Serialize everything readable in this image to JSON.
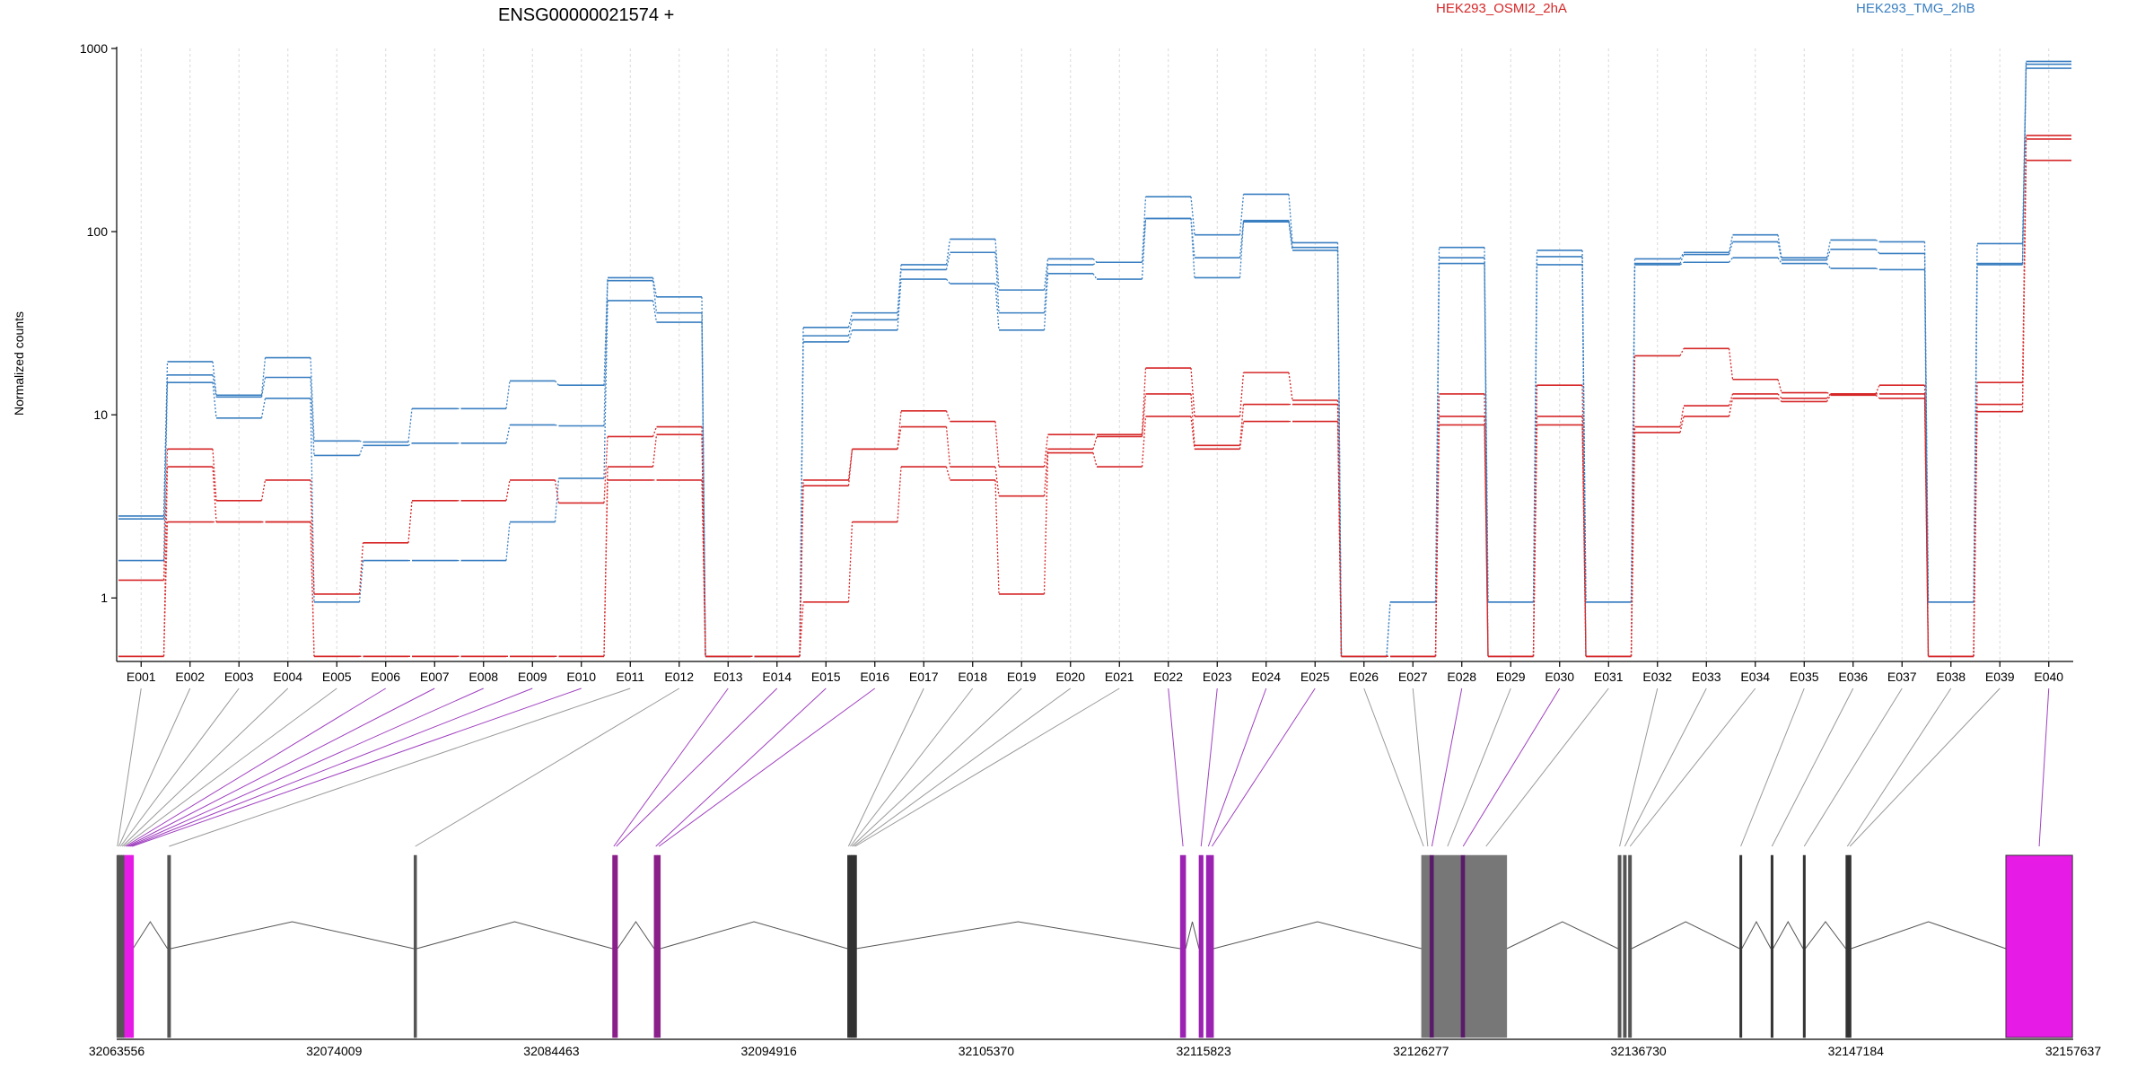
{
  "chart_data": {
    "type": "line",
    "title": "ENSG00000021574 +",
    "ylabel": "Normalized counts",
    "y_scale": "log",
    "ylim": [
      0.45,
      1000
    ],
    "yticks": [
      1,
      10,
      100,
      1000
    ],
    "ytick_labels": [
      "1",
      "10",
      "100",
      "1000"
    ],
    "exons": [
      "E001",
      "E002",
      "E003",
      "E004",
      "E005",
      "E006",
      "E007",
      "E008",
      "E009",
      "E010",
      "E011",
      "E012",
      "E013",
      "E014",
      "E015",
      "E016",
      "E017",
      "E018",
      "E019",
      "E020",
      "E021",
      "E022",
      "E023",
      "E024",
      "E025",
      "E026",
      "E027",
      "E028",
      "E029",
      "E030",
      "E031",
      "E032",
      "E033",
      "E034",
      "E035",
      "E036",
      "E037",
      "E038",
      "E039",
      "E040"
    ],
    "legend": [
      {
        "name": "HEK293_OSMI2_2hA",
        "color": "#d62728"
      },
      {
        "name": "HEK293_TMG_2hB",
        "color": "#3a7fc1"
      }
    ],
    "series": [
      {
        "group": "HEK293_TMG_2hB",
        "color": "#3a7fc1",
        "values": [
          2.8,
          19.5,
          12.8,
          20.5,
          7.2,
          7.1,
          10.8,
          10.8,
          15.3,
          14.5,
          56,
          44,
          0.48,
          0.48,
          30,
          36,
          66,
          91,
          48,
          71,
          68,
          155,
          96,
          160,
          87,
          0.48,
          0.95,
          82,
          0.95,
          79,
          0.95,
          71,
          77,
          96,
          72,
          90,
          88,
          0.95,
          86,
          850
        ]
      },
      {
        "group": "HEK293_TMG_2hB",
        "color": "#3a7fc1",
        "values": [
          2.7,
          16.5,
          12.5,
          16,
          6,
          6.8,
          7,
          7,
          8.8,
          8.7,
          54,
          36,
          0.48,
          0.48,
          27,
          33,
          62,
          77,
          36,
          66,
          68,
          118,
          72,
          115,
          82,
          0.48,
          0.95,
          72,
          0.95,
          73,
          0.95,
          67,
          75,
          88,
          70,
          80,
          76,
          0.95,
          67,
          820
        ]
      },
      {
        "group": "HEK293_TMG_2hB",
        "color": "#3a7fc1",
        "values": [
          1.6,
          15,
          9.6,
          12.3,
          0.95,
          1.6,
          1.6,
          1.6,
          2.6,
          4.5,
          42,
          32,
          0.48,
          0.48,
          25,
          29,
          55,
          52,
          29,
          59,
          55,
          118,
          56,
          113,
          79,
          0.48,
          0.48,
          67,
          0.48,
          66,
          0.48,
          66,
          68,
          72,
          67,
          63,
          62,
          0.48,
          66,
          780
        ]
      },
      {
        "group": "HEK293_OSMI2_2hA",
        "color": "#d62728",
        "values": [
          1.25,
          6.5,
          3.4,
          4.4,
          1.05,
          2,
          3.4,
          3.4,
          4.4,
          3.3,
          7.6,
          8.6,
          0.48,
          0.48,
          4.4,
          6.5,
          10.5,
          9.2,
          5.2,
          7.8,
          7.8,
          18,
          9.8,
          17,
          12,
          0.48,
          0.48,
          13,
          0.48,
          14.5,
          0.48,
          21,
          23,
          15.6,
          13.2,
          13,
          14.5,
          0.48,
          15,
          335
        ]
      },
      {
        "group": "HEK293_OSMI2_2hA",
        "color": "#d62728",
        "values": [
          0.48,
          5.2,
          2.6,
          2.6,
          0.48,
          0.48,
          0.48,
          0.48,
          0.48,
          0.48,
          5.2,
          7.8,
          0.48,
          0.48,
          4.1,
          6.5,
          8.6,
          5.2,
          3.6,
          6.5,
          7.6,
          13,
          6.8,
          11.4,
          11.4,
          0.48,
          0.48,
          9.8,
          0.48,
          9.8,
          0.48,
          8.6,
          11.2,
          13,
          12.3,
          13,
          13,
          0.48,
          11.4,
          320
        ]
      },
      {
        "group": "HEK293_OSMI2_2hA",
        "color": "#d62728",
        "values": [
          0.48,
          2.6,
          2.6,
          2.6,
          0.48,
          0.48,
          0.48,
          0.48,
          0.48,
          0.48,
          4.4,
          4.4,
          0.48,
          0.48,
          0.95,
          2.6,
          5.2,
          4.4,
          1.05,
          6.2,
          5.2,
          9.8,
          6.5,
          9.2,
          9.2,
          0.48,
          0.48,
          8.8,
          0.48,
          8.8,
          0.48,
          8,
          9.8,
          12.3,
          11.8,
          12.8,
          12.3,
          0.48,
          10.4,
          245
        ]
      }
    ],
    "gene_model": {
      "coordinate_ticks": [
        "32063556",
        "32074009",
        "32084463",
        "32094916",
        "32105370",
        "32115823",
        "32126277",
        "32136730",
        "32147184",
        "32157637"
      ],
      "start": 32063556,
      "end": 32157637,
      "exon_color": "#e61be6",
      "highlight_link_color": "#a040c0",
      "exons": [
        {
          "id": "E001",
          "start": 32063560,
          "end": 32063620,
          "color": "#555555"
        },
        {
          "id": "E002",
          "start": 32063620,
          "end": 32063700,
          "color": "#555555"
        },
        {
          "id": "E003",
          "start": 32063700,
          "end": 32063780,
          "color": "#555555"
        },
        {
          "id": "E004",
          "start": 32063780,
          "end": 32063860,
          "color": "#555555"
        },
        {
          "id": "E005",
          "start": 32063860,
          "end": 32063940,
          "color": "#555555"
        },
        {
          "id": "E006",
          "start": 32063940,
          "end": 32064020,
          "color": "#e61be6"
        },
        {
          "id": "E007",
          "start": 32064020,
          "end": 32064100,
          "color": "#e61be6"
        },
        {
          "id": "E008",
          "start": 32064100,
          "end": 32064180,
          "color": "#e61be6"
        },
        {
          "id": "E009",
          "start": 32064180,
          "end": 32064260,
          "color": "#e61be6"
        },
        {
          "id": "E010",
          "start": 32064260,
          "end": 32064340,
          "color": "#e61be6"
        },
        {
          "id": "E011",
          "start": 32066000,
          "end": 32066150,
          "color": "#555555"
        },
        {
          "id": "E012",
          "start": 32077850,
          "end": 32077980,
          "color": "#555555"
        },
        {
          "id": "E013",
          "start": 32087400,
          "end": 32087520,
          "color": "#8a1f8a"
        },
        {
          "id": "E014",
          "start": 32087520,
          "end": 32087640,
          "color": "#8a1f8a"
        },
        {
          "id": "E015",
          "start": 32089400,
          "end": 32089560,
          "color": "#8a1f8a"
        },
        {
          "id": "E016",
          "start": 32089560,
          "end": 32089700,
          "color": "#8a1f8a"
        },
        {
          "id": "E017",
          "start": 32098700,
          "end": 32098790,
          "color": "#333333"
        },
        {
          "id": "E018",
          "start": 32098790,
          "end": 32098870,
          "color": "#333333"
        },
        {
          "id": "E019",
          "start": 32098870,
          "end": 32098950,
          "color": "#333333"
        },
        {
          "id": "E020",
          "start": 32098950,
          "end": 32099030,
          "color": "#333333"
        },
        {
          "id": "E021",
          "start": 32099030,
          "end": 32099110,
          "color": "#333333"
        },
        {
          "id": "E022",
          "start": 32114700,
          "end": 32114960,
          "color": "#9b22b2"
        },
        {
          "id": "E023",
          "start": 32115600,
          "end": 32115800,
          "color": "#9b22b2"
        },
        {
          "id": "E024",
          "start": 32115950,
          "end": 32116150,
          "color": "#9b22b2"
        },
        {
          "id": "E025",
          "start": 32116150,
          "end": 32116300,
          "color": "#9b22b2"
        },
        {
          "id": "E026",
          "start": 32126300,
          "end": 32126500,
          "color": "#777777"
        },
        {
          "id": "E027",
          "start": 32126500,
          "end": 32126700,
          "color": "#777777"
        },
        {
          "id": "E028",
          "start": 32126700,
          "end": 32126900,
          "color": "#5a1a6a"
        },
        {
          "id": "E029",
          "start": 32126900,
          "end": 32128200,
          "color": "#777777"
        },
        {
          "id": "E030",
          "start": 32128200,
          "end": 32128400,
          "color": "#5a1a6a"
        },
        {
          "id": "E031",
          "start": 32128400,
          "end": 32130400,
          "color": "#777777"
        },
        {
          "id": "E032",
          "start": 32135750,
          "end": 32135900,
          "color": "#555555"
        },
        {
          "id": "E033",
          "start": 32136000,
          "end": 32136150,
          "color": "#555555"
        },
        {
          "id": "E034",
          "start": 32136250,
          "end": 32136400,
          "color": "#555555"
        },
        {
          "id": "E035",
          "start": 32141600,
          "end": 32141700,
          "color": "#333333"
        },
        {
          "id": "E036",
          "start": 32143100,
          "end": 32143200,
          "color": "#333333"
        },
        {
          "id": "E037",
          "start": 32144650,
          "end": 32144750,
          "color": "#333333"
        },
        {
          "id": "E038",
          "start": 32146700,
          "end": 32146850,
          "color": "#333333"
        },
        {
          "id": "E039",
          "start": 32146850,
          "end": 32146950,
          "color": "#333333"
        },
        {
          "id": "E040",
          "start": 32154400,
          "end": 32157600,
          "color": "#e61be6"
        }
      ]
    }
  }
}
